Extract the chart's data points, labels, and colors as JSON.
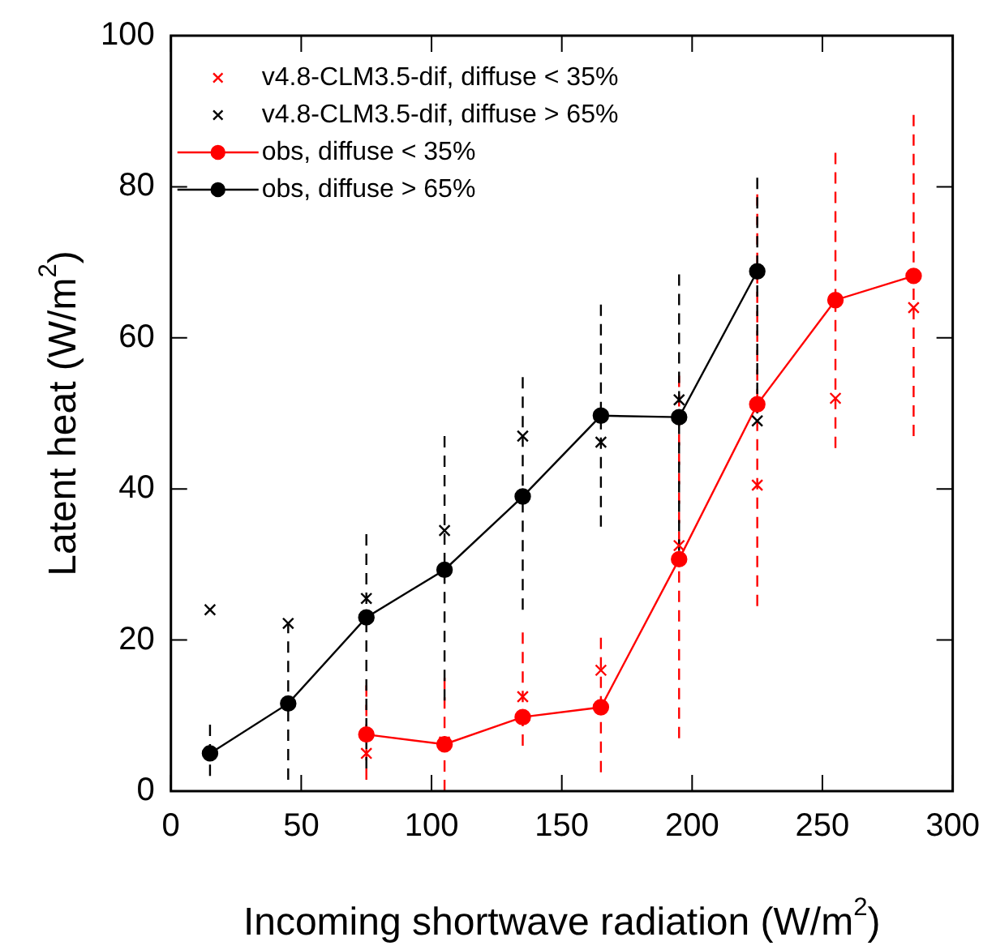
{
  "chart_data": {
    "type": "line",
    "xlabel": "Incoming shortwave radiation (W/m$^{2}$)",
    "ylabel": "Latent heat (W/m$^{2}$)",
    "xlim": [
      0,
      300
    ],
    "xticks": [
      0,
      50,
      100,
      150,
      200,
      250,
      300
    ],
    "ylim": [
      0,
      100
    ],
    "yticks": [
      0,
      20,
      40,
      60,
      80,
      100
    ],
    "grid": false,
    "legend": "top left",
    "series": [
      {
        "name": "v4.8-CLM3.5-dif, diffuse < 35%",
        "type": "scatter",
        "marker": "cross",
        "color": "#ff0000",
        "x": [
          75,
          105,
          135,
          165,
          195,
          225,
          255,
          285
        ],
        "values": [
          5,
          6.5,
          12.5,
          16,
          32.5,
          40.5,
          52,
          64
        ]
      },
      {
        "name": "v4.8-CLM3.5-dif, diffuse > 65%",
        "type": "scatter",
        "marker": "cross",
        "color": "#000000",
        "x": [
          15,
          45,
          75,
          105,
          135,
          165,
          195,
          225
        ],
        "values": [
          24,
          22.2,
          25.5,
          34.5,
          47,
          46.2,
          51.8,
          49
        ]
      },
      {
        "name": "obs, diffuse < 35%",
        "marker": "circle",
        "color": "#ff0000",
        "x": [
          75,
          105,
          135,
          165,
          195,
          225,
          255,
          285
        ],
        "values": [
          7.5,
          6.2,
          9.8,
          11.1,
          30.7,
          51.2,
          65,
          68.2
        ],
        "errors": [
          [
            1.5,
            14
          ],
          [
            0,
            15
          ],
          [
            6,
            21
          ],
          [
            2.5,
            20.3
          ],
          [
            7,
            55
          ],
          [
            24.5,
            79
          ],
          [
            45.4,
            84.5
          ],
          [
            47,
            89.5
          ]
        ]
      },
      {
        "name": "obs, diffuse > 65%",
        "marker": "circle",
        "color": "#000000",
        "x": [
          15,
          45,
          75,
          105,
          135,
          165,
          195,
          225
        ],
        "values": [
          5,
          11.6,
          23,
          29.3,
          39,
          49.7,
          49.5,
          68.8
        ],
        "errors": [
          [
            2,
            8.8
          ],
          [
            1.5,
            22.4
          ],
          [
            3,
            34
          ],
          [
            12,
            47
          ],
          [
            24,
            54.8
          ],
          [
            35,
            64.4
          ],
          [
            31.8,
            68.4
          ],
          [
            50,
            81.2
          ]
        ]
      }
    ]
  }
}
